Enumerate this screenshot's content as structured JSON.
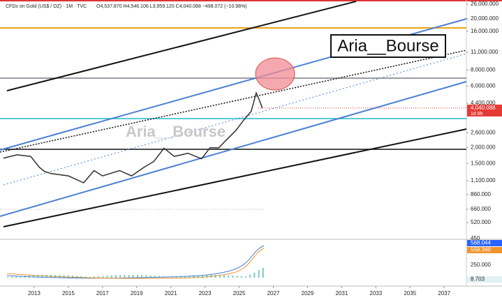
{
  "header": {
    "symbol": "CFDs on Gold (US$ / OZ) · 1M · TVC",
    "ohlc": "O4,537.870 H4,546.106 L3,959.120 C4,040.088 −498.072 (−10.98%)"
  },
  "badge": "Aria__Bourse",
  "watermark": "Aria__Bourse",
  "chart_data": {
    "type": "line",
    "log_scale": true,
    "color": "#2e2e2e",
    "x": [
      2011.2,
      2012.0,
      2012.8,
      2013.3,
      2013.6,
      2014.0,
      2015.0,
      2015.9,
      2016.5,
      2017.0,
      2018.0,
      2018.7,
      2019.5,
      2020.0,
      2020.6,
      2021.2,
      2022.0,
      2022.8,
      2023.3,
      2023.8,
      2024.2,
      2024.8,
      2025.3,
      2025.7,
      2026.0,
      2026.2,
      2026.35
    ],
    "values": [
      1650,
      1750,
      1700,
      1400,
      1300,
      1250,
      1200,
      1060,
      1320,
      1200,
      1320,
      1200,
      1420,
      1550,
      1970,
      1700,
      1800,
      1630,
      1990,
      1980,
      2250,
      2700,
      3300,
      3800,
      5300,
      4600,
      4040
    ],
    "xlim": [
      2011,
      2038.3
    ],
    "xticks": [
      2013,
      2015,
      2017,
      2019,
      2021,
      2023,
      2025,
      2027,
      2029,
      2031,
      2033,
      2035,
      2037
    ],
    "ylim": [
      400,
      28000
    ],
    "yticks": [
      {
        "value": 26000,
        "label": "26,000.000"
      },
      {
        "value": 20000,
        "label": "20,000.000"
      },
      {
        "value": 16000,
        "label": "16,000.000"
      },
      {
        "value": 11000,
        "label": "11,000.000"
      },
      {
        "value": 8000,
        "label": "8,000.000"
      },
      {
        "value": 6000,
        "label": "6,000.000"
      },
      {
        "value": 4400,
        "label": "4,400.000"
      },
      {
        "value": 2600,
        "label": "2,600.000"
      },
      {
        "value": 2000,
        "label": "2,000.000"
      },
      {
        "value": 1500,
        "label": "1,500.000"
      },
      {
        "value": 1100,
        "label": "1,100.000"
      },
      {
        "value": 860,
        "label": "860.000"
      },
      {
        "value": 660,
        "label": "660.000"
      },
      {
        "value": 520,
        "label": "520.000"
      }
    ],
    "last_price": {
      "value": 4040.088,
      "label": "4,040.088",
      "countdown": "1d 8h"
    }
  },
  "indicator": {
    "scale_top": "450",
    "macd": "568.044",
    "signal": "559.340",
    "scale_mid": "250.000",
    "histogram": "8.703"
  }
}
